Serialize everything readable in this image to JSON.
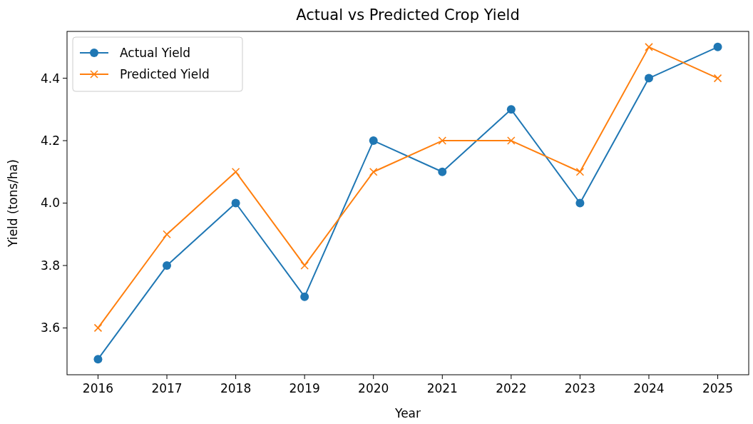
{
  "chart_data": {
    "type": "line",
    "title": "Actual vs Predicted Crop Yield",
    "xlabel": "Year",
    "ylabel": "Yield (tons/ha)",
    "x": [
      2016,
      2017,
      2018,
      2019,
      2020,
      2021,
      2022,
      2023,
      2024,
      2025
    ],
    "series": [
      {
        "name": "Actual Yield",
        "color": "#1f77b4",
        "marker": "circle",
        "values": [
          3.5,
          3.8,
          4.0,
          3.7,
          4.2,
          4.1,
          4.3,
          4.0,
          4.4,
          4.5
        ]
      },
      {
        "name": "Predicted Yield",
        "color": "#ff7f0e",
        "marker": "cross",
        "values": [
          3.6,
          3.9,
          4.1,
          3.8,
          4.1,
          4.2,
          4.2,
          4.1,
          4.5,
          4.4
        ]
      }
    ],
    "xlim": [
      2015.55,
      2025.45
    ],
    "xticks": [
      2016,
      2017,
      2018,
      2019,
      2020,
      2021,
      2022,
      2023,
      2024,
      2025
    ],
    "ylim": [
      3.45,
      4.55
    ],
    "yticks": [
      {
        "value": 3.6,
        "label": "3.6"
      },
      {
        "value": 3.8,
        "label": "3.8"
      },
      {
        "value": 4.0,
        "label": "4.0"
      },
      {
        "value": 4.2,
        "label": "4.2"
      },
      {
        "value": 4.4,
        "label": "4.4"
      }
    ],
    "legend": "top left",
    "line_style": "solid"
  }
}
